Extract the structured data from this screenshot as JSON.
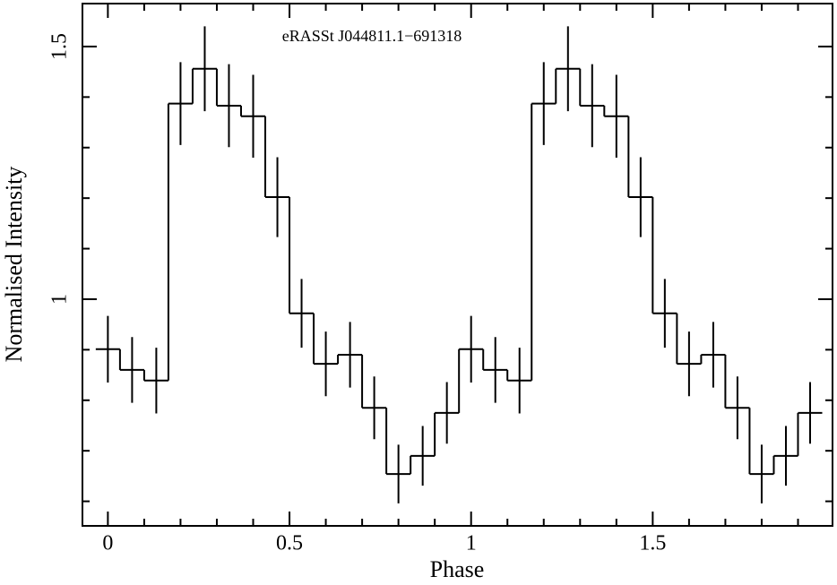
{
  "chart_data": {
    "type": "step",
    "annotation": "eRASSt J044811.1−691318",
    "xlabel": "Phase",
    "ylabel": "Normalised Intensity",
    "x": [
      0,
      0.0667,
      0.1333,
      0.2,
      0.2667,
      0.3333,
      0.4,
      0.4667,
      0.5333,
      0.6,
      0.6667,
      0.7333,
      0.8,
      0.8667,
      0.9333,
      1,
      1.0667,
      1.1333,
      1.2,
      1.2667,
      1.3333,
      1.4,
      1.4667,
      1.5333,
      1.6,
      1.6667,
      1.7333,
      1.8,
      1.8667,
      1.9333
    ],
    "values": [
      0.901,
      0.86,
      0.839,
      1.387,
      1.456,
      1.383,
      1.362,
      1.202,
      0.972,
      0.872,
      0.89,
      0.785,
      0.654,
      0.69,
      0.775,
      0.901,
      0.86,
      0.839,
      1.387,
      1.456,
      1.383,
      1.362,
      1.202,
      0.972,
      0.872,
      0.89,
      0.785,
      0.654,
      0.69,
      0.775
    ],
    "errors": [
      0.066,
      0.065,
      0.065,
      0.082,
      0.084,
      0.082,
      0.082,
      0.079,
      0.068,
      0.064,
      0.065,
      0.062,
      0.058,
      0.059,
      0.061,
      0.066,
      0.065,
      0.065,
      0.082,
      0.084,
      0.082,
      0.082,
      0.079,
      0.068,
      0.064,
      0.065,
      0.062,
      0.058,
      0.059,
      0.061
    ],
    "color": "#000000",
    "xlim": [
      -0.07,
      1.995
    ],
    "xticks": [
      0,
      0.5,
      1,
      1.5
    ],
    "xminor_ticks": [
      0.1,
      0.2,
      0.3,
      0.4,
      0.6,
      0.7,
      0.8,
      0.9,
      1.1,
      1.2,
      1.3,
      1.4,
      1.6,
      1.7,
      1.8,
      1.9
    ],
    "ylim": [
      0.5514,
      1.585
    ],
    "yticks": [
      1,
      1.5
    ],
    "yminor_ticks": [
      0.6,
      0.7,
      0.8,
      0.9,
      1.1,
      1.2,
      1.3,
      1.4
    ]
  }
}
